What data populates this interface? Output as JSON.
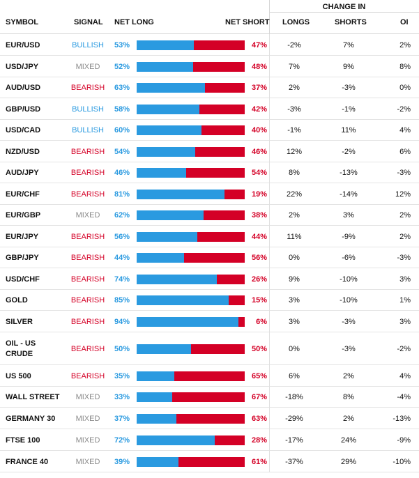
{
  "header": {
    "change_in": "CHANGE IN",
    "symbol": "SYMBOL",
    "signal": "SIGNAL",
    "net_long": "NET LONG",
    "net_short": "NET SHORT",
    "longs": "LONGS",
    "shorts": "SHORTS",
    "oi": "OI"
  },
  "colors": {
    "bullish": "#2a9ae0",
    "bearish": "#d40026",
    "mixed": "#8a8a8a",
    "long_bar": "#2a9ae0",
    "short_bar": "#d40026"
  },
  "rows": [
    {
      "symbol": "EUR/USD",
      "signal": "BULLISH",
      "net_long": "53%",
      "long_fraction": 0.53,
      "net_short": "47%",
      "longs": "-2%",
      "shorts": "7%",
      "oi": "2%"
    },
    {
      "symbol": "USD/JPY",
      "signal": "MIXED",
      "net_long": "52%",
      "long_fraction": 0.52,
      "net_short": "48%",
      "longs": "7%",
      "shorts": "9%",
      "oi": "8%"
    },
    {
      "symbol": "AUD/USD",
      "signal": "BEARISH",
      "net_long": "63%",
      "long_fraction": 0.63,
      "net_short": "37%",
      "longs": "2%",
      "shorts": "-3%",
      "oi": "0%"
    },
    {
      "symbol": "GBP/USD",
      "signal": "BULLISH",
      "net_long": "58%",
      "long_fraction": 0.58,
      "net_short": "42%",
      "longs": "-3%",
      "shorts": "-1%",
      "oi": "-2%"
    },
    {
      "symbol": "USD/CAD",
      "signal": "BULLISH",
      "net_long": "60%",
      "long_fraction": 0.6,
      "net_short": "40%",
      "longs": "-1%",
      "shorts": "11%",
      "oi": "4%"
    },
    {
      "symbol": "NZD/USD",
      "signal": "BEARISH",
      "net_long": "54%",
      "long_fraction": 0.54,
      "net_short": "46%",
      "longs": "12%",
      "shorts": "-2%",
      "oi": "6%"
    },
    {
      "symbol": "AUD/JPY",
      "signal": "BEARISH",
      "net_long": "46%",
      "long_fraction": 0.46,
      "net_short": "54%",
      "longs": "8%",
      "shorts": "-13%",
      "oi": "-3%"
    },
    {
      "symbol": "EUR/CHF",
      "signal": "BEARISH",
      "net_long": "81%",
      "long_fraction": 0.81,
      "net_short": "19%",
      "longs": "22%",
      "shorts": "-14%",
      "oi": "12%"
    },
    {
      "symbol": "EUR/GBP",
      "signal": "MIXED",
      "net_long": "62%",
      "long_fraction": 0.62,
      "net_short": "38%",
      "longs": "2%",
      "shorts": "3%",
      "oi": "2%"
    },
    {
      "symbol": "EUR/JPY",
      "signal": "BEARISH",
      "net_long": "56%",
      "long_fraction": 0.56,
      "net_short": "44%",
      "longs": "11%",
      "shorts": "-9%",
      "oi": "2%"
    },
    {
      "symbol": "GBP/JPY",
      "signal": "BEARISH",
      "net_long": "44%",
      "long_fraction": 0.44,
      "net_short": "56%",
      "longs": "0%",
      "shorts": "-6%",
      "oi": "-3%"
    },
    {
      "symbol": "USD/CHF",
      "signal": "BEARISH",
      "net_long": "74%",
      "long_fraction": 0.74,
      "net_short": "26%",
      "longs": "9%",
      "shorts": "-10%",
      "oi": "3%"
    },
    {
      "symbol": "GOLD",
      "signal": "BEARISH",
      "net_long": "85%",
      "long_fraction": 0.85,
      "net_short": "15%",
      "longs": "3%",
      "shorts": "-10%",
      "oi": "1%"
    },
    {
      "symbol": "SILVER",
      "signal": "BEARISH",
      "net_long": "94%",
      "long_fraction": 0.94,
      "net_short": "6%",
      "longs": "3%",
      "shorts": "-3%",
      "oi": "3%"
    },
    {
      "symbol": "OIL - US CRUDE",
      "signal": "BEARISH",
      "net_long": "50%",
      "long_fraction": 0.5,
      "net_short": "50%",
      "longs": "0%",
      "shorts": "-3%",
      "oi": "-2%"
    },
    {
      "symbol": "US 500",
      "signal": "BEARISH",
      "net_long": "35%",
      "long_fraction": 0.35,
      "net_short": "65%",
      "longs": "6%",
      "shorts": "2%",
      "oi": "4%"
    },
    {
      "symbol": "WALL STREET",
      "signal": "MIXED",
      "net_long": "33%",
      "long_fraction": 0.33,
      "net_short": "67%",
      "longs": "-18%",
      "shorts": "8%",
      "oi": "-4%"
    },
    {
      "symbol": "GERMANY 30",
      "signal": "MIXED",
      "net_long": "37%",
      "long_fraction": 0.37,
      "net_short": "63%",
      "longs": "-29%",
      "shorts": "2%",
      "oi": "-13%"
    },
    {
      "symbol": "FTSE 100",
      "signal": "MIXED",
      "net_long": "72%",
      "long_fraction": 0.72,
      "net_short": "28%",
      "longs": "-17%",
      "shorts": "24%",
      "oi": "-9%"
    },
    {
      "symbol": "FRANCE 40",
      "signal": "MIXED",
      "net_long": "39%",
      "long_fraction": 0.39,
      "net_short": "61%",
      "longs": "-37%",
      "shorts": "29%",
      "oi": "-10%"
    }
  ]
}
